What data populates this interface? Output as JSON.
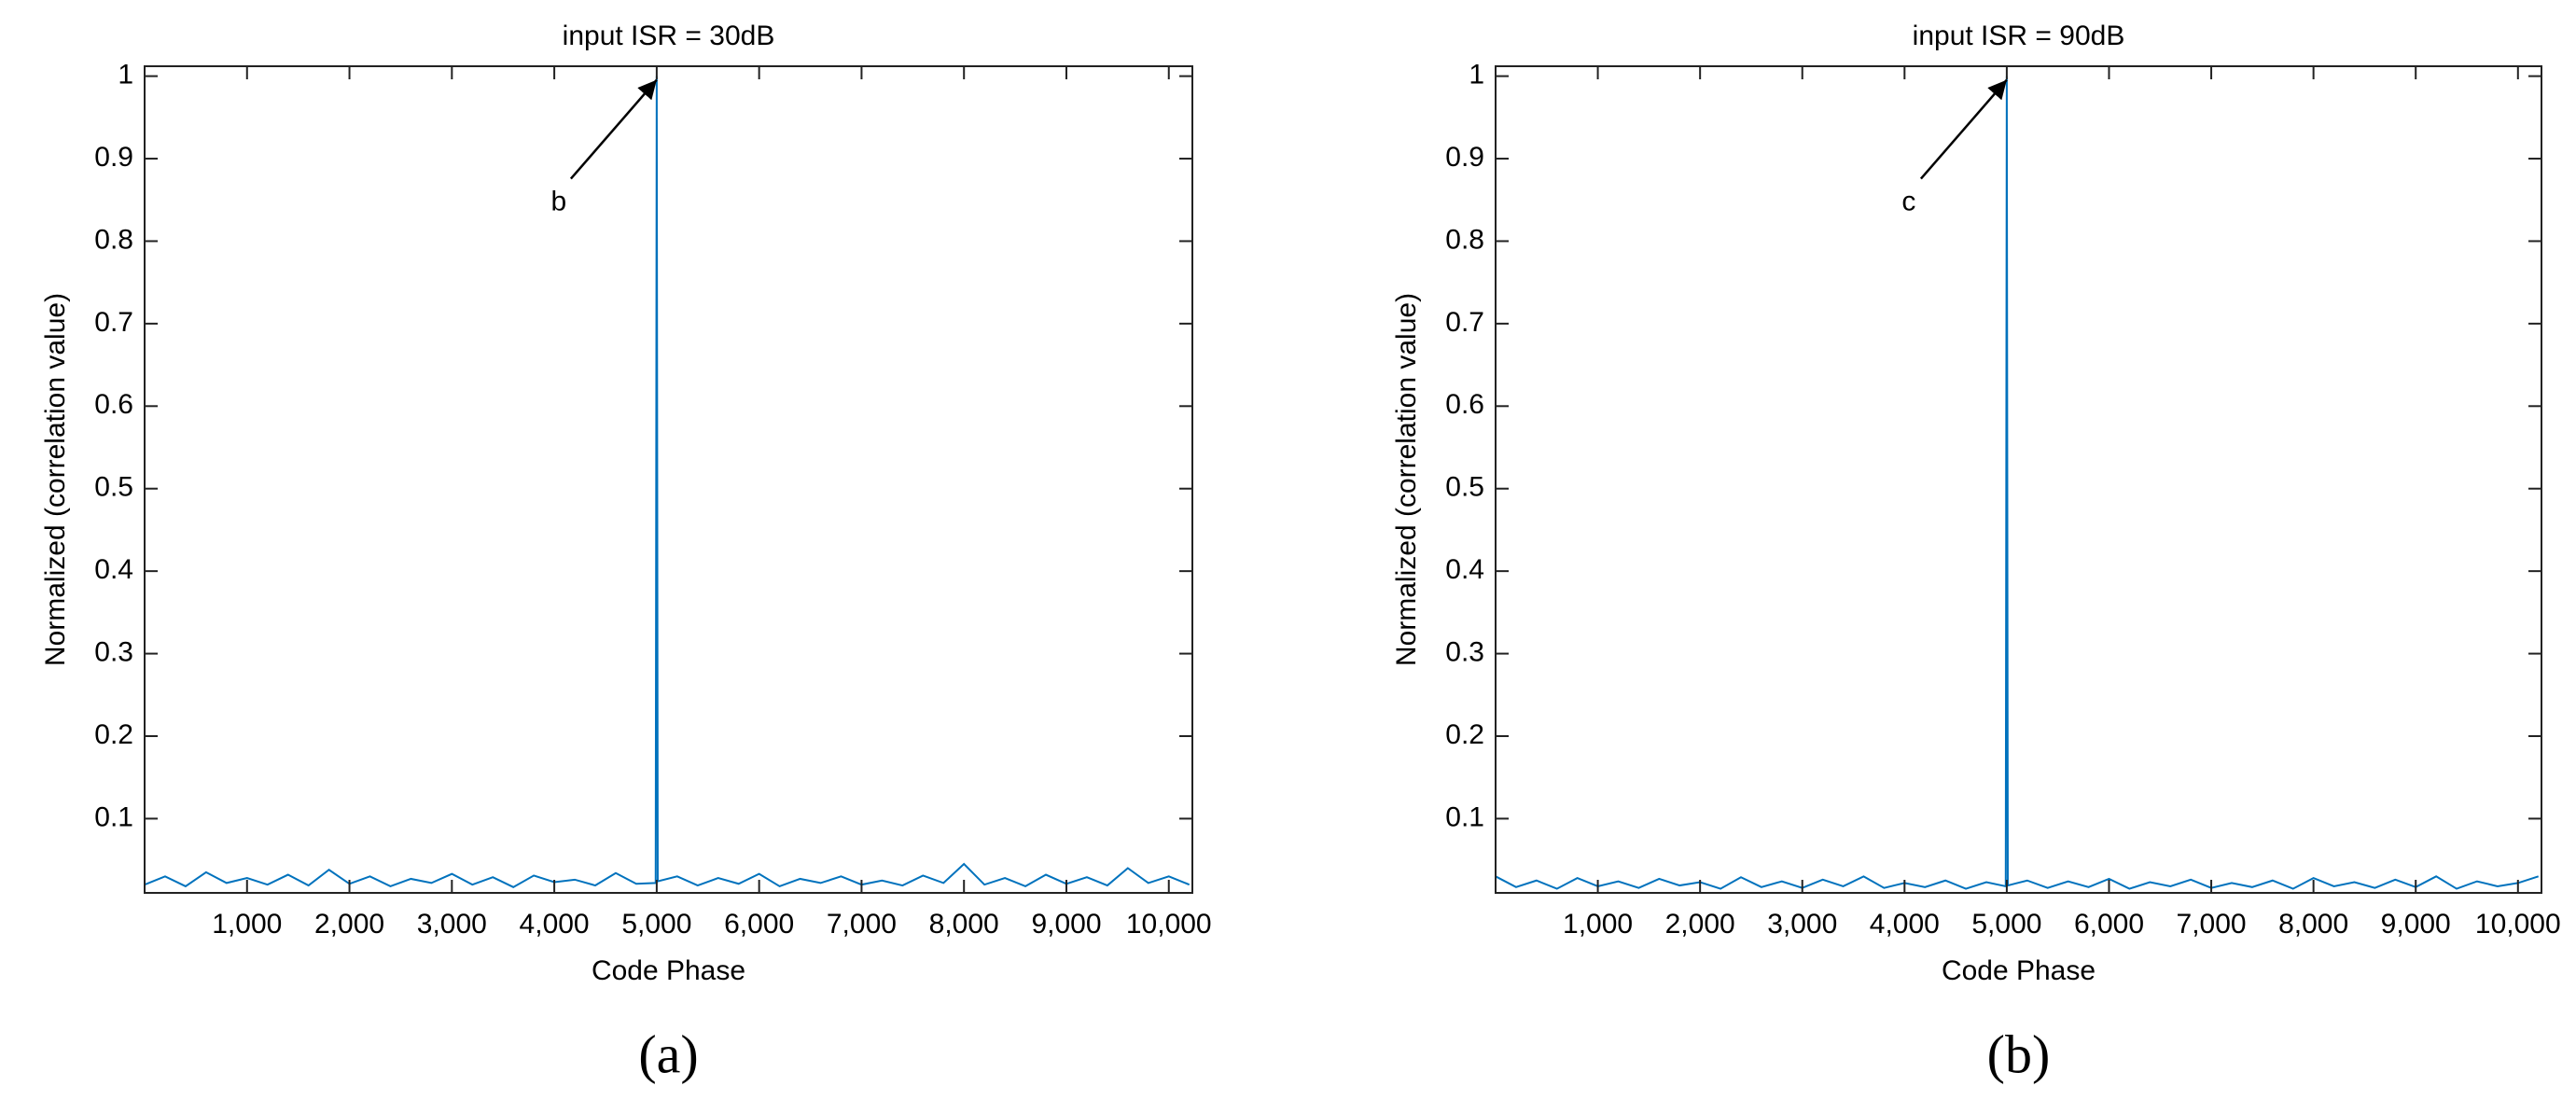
{
  "chart_data": [
    {
      "type": "line",
      "title": "input ISR = 30dB",
      "xlabel": "Code Phase",
      "ylabel": "Normalized (correlation value)",
      "annotation": "b",
      "panel_label": "(a)",
      "x": [
        0,
        200,
        400,
        600,
        800,
        1000,
        1200,
        1400,
        1600,
        1800,
        2000,
        2200,
        2400,
        2600,
        2800,
        3000,
        3200,
        3400,
        3600,
        3800,
        4000,
        4200,
        4400,
        4600,
        4800,
        4990,
        5000,
        5010,
        5200,
        5400,
        5600,
        5800,
        6000,
        6200,
        6400,
        6600,
        6800,
        7000,
        7200,
        7400,
        7600,
        7800,
        8000,
        8200,
        8400,
        8600,
        8800,
        9000,
        9200,
        9400,
        9600,
        9800,
        10000,
        10200
      ],
      "series": [
        {
          "color": "#0072bd",
          "values": [
            0.02,
            0.03,
            0.018,
            0.035,
            0.022,
            0.028,
            0.02,
            0.032,
            0.019,
            0.038,
            0.021,
            0.03,
            0.018,
            0.027,
            0.022,
            0.033,
            0.02,
            0.029,
            0.017,
            0.031,
            0.023,
            0.026,
            0.019,
            0.034,
            0.021,
            0.022,
            1,
            0.024,
            0.03,
            0.019,
            0.028,
            0.021,
            0.033,
            0.018,
            0.027,
            0.022,
            0.03,
            0.02,
            0.025,
            0.019,
            0.031,
            0.022,
            0.045,
            0.02,
            0.028,
            0.018,
            0.032,
            0.021,
            0.029,
            0.019,
            0.04,
            0.022,
            0.03,
            0.02
          ]
        }
      ],
      "xlim": [
        0,
        10230
      ],
      "ylim": [
        0.01,
        1.012
      ],
      "xticks": [
        {
          "value": 1000,
          "label": "1,000"
        },
        {
          "value": 2000,
          "label": "2,000"
        },
        {
          "value": 3000,
          "label": "3,000"
        },
        {
          "value": 4000,
          "label": "4,000"
        },
        {
          "value": 5000,
          "label": "5,000"
        },
        {
          "value": 6000,
          "label": "6,000"
        },
        {
          "value": 7000,
          "label": "7,000"
        },
        {
          "value": 8000,
          "label": "8,000"
        },
        {
          "value": 9000,
          "label": "9,000"
        },
        {
          "value": 10000,
          "label": "10,000"
        }
      ],
      "yticks": [
        0.1,
        0.2,
        0.3,
        0.4,
        0.5,
        0.6,
        0.7,
        0.8,
        0.9,
        1
      ]
    },
    {
      "type": "line",
      "title": "input ISR = 90dB",
      "xlabel": "Code Phase",
      "ylabel": "Normalized (correlation value)",
      "annotation": "c",
      "panel_label": "(b)",
      "x": [
        0,
        200,
        400,
        600,
        800,
        1000,
        1200,
        1400,
        1600,
        1800,
        2000,
        2200,
        2400,
        2600,
        2800,
        3000,
        3200,
        3400,
        3600,
        3800,
        4000,
        4200,
        4400,
        4600,
        4800,
        4990,
        5000,
        5010,
        5200,
        5400,
        5600,
        5800,
        6000,
        6200,
        6400,
        6600,
        6800,
        7000,
        7200,
        7400,
        7600,
        7800,
        8000,
        8200,
        8400,
        8600,
        8800,
        9000,
        9200,
        9400,
        9600,
        9800,
        10000,
        10200
      ],
      "series": [
        {
          "color": "#0072bd",
          "values": [
            0.03,
            0.017,
            0.025,
            0.015,
            0.028,
            0.018,
            0.024,
            0.016,
            0.027,
            0.019,
            0.023,
            0.015,
            0.029,
            0.017,
            0.024,
            0.016,
            0.026,
            0.018,
            0.03,
            0.016,
            0.022,
            0.017,
            0.025,
            0.015,
            0.023,
            0.018,
            1,
            0.019,
            0.025,
            0.016,
            0.024,
            0.017,
            0.027,
            0.015,
            0.023,
            0.018,
            0.026,
            0.016,
            0.022,
            0.017,
            0.025,
            0.015,
            0.028,
            0.018,
            0.023,
            0.016,
            0.026,
            0.017,
            0.03,
            0.015,
            0.024,
            0.018,
            0.022,
            0.03
          ]
        }
      ],
      "xlim": [
        0,
        10230
      ],
      "ylim": [
        0.01,
        1.012
      ],
      "xticks": [
        {
          "value": 1000,
          "label": "1,000"
        },
        {
          "value": 2000,
          "label": "2,000"
        },
        {
          "value": 3000,
          "label": "3,000"
        },
        {
          "value": 4000,
          "label": "4,000"
        },
        {
          "value": 5000,
          "label": "5,000"
        },
        {
          "value": 6000,
          "label": "6,000"
        },
        {
          "value": 7000,
          "label": "7,000"
        },
        {
          "value": 8000,
          "label": "8,000"
        },
        {
          "value": 9000,
          "label": "9,000"
        },
        {
          "value": 10000,
          "label": "10,000"
        }
      ],
      "yticks": [
        0.1,
        0.2,
        0.3,
        0.4,
        0.5,
        0.6,
        0.7,
        0.8,
        0.9,
        1
      ]
    }
  ]
}
